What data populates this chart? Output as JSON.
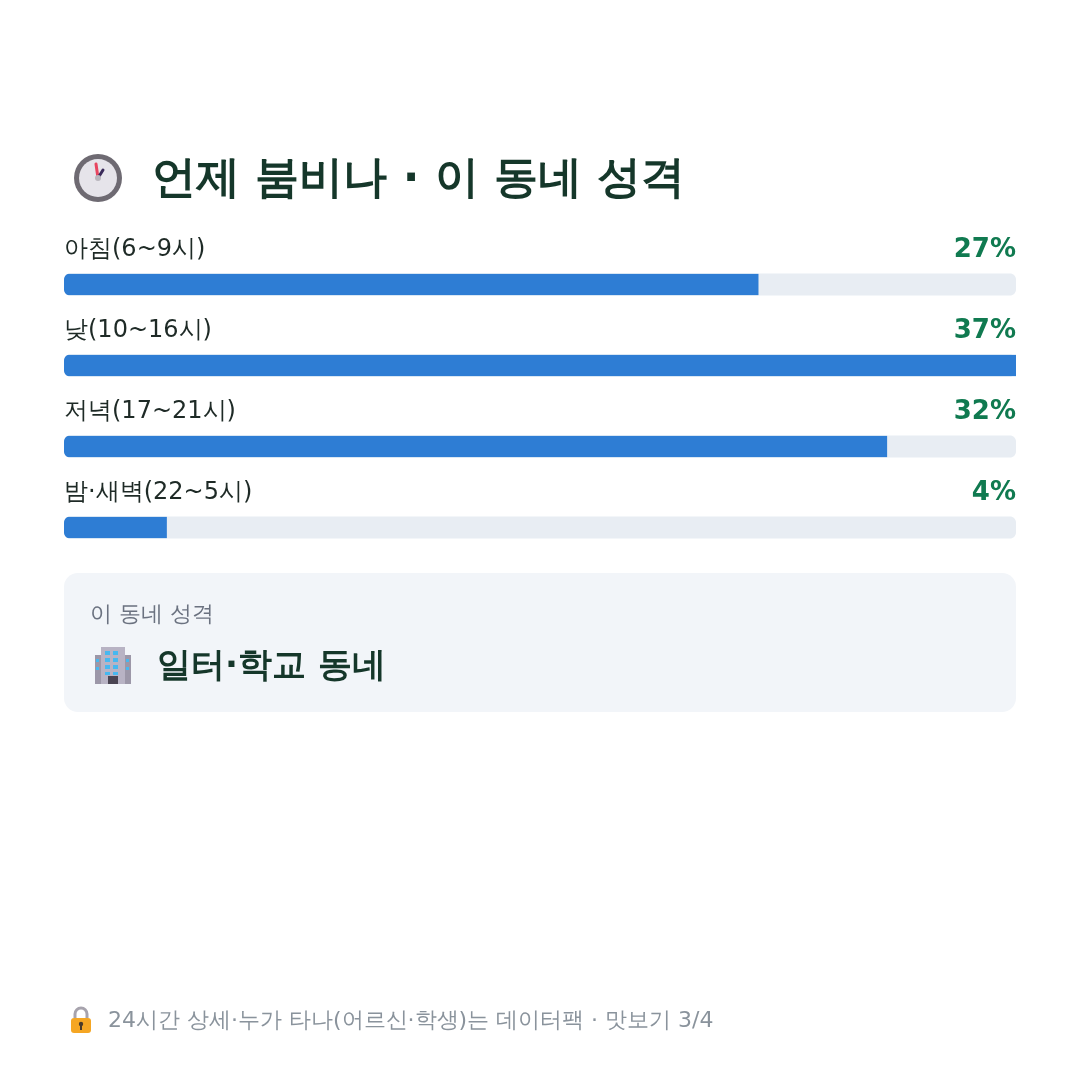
{
  "chart_data": {
    "type": "bar",
    "orientation": "horizontal",
    "title": "언제 붐비나 · 이 동네 성격",
    "categories": [
      "아침(6~9시)",
      "낮(10~16시)",
      "저녁(17~21시)",
      "밤·새벽(22~5시)"
    ],
    "values": [
      27,
      37,
      32,
      4
    ],
    "value_labels": [
      "27%",
      "37%",
      "32%",
      "4%"
    ],
    "color": "#2e7dd4",
    "annotations": [
      "이 동네 성격",
      "일터·학교 동네",
      "24시간 상세·누가 타나(어르신·학생)는 데이터팩 · 맛보기 3/4"
    ]
  }
}
